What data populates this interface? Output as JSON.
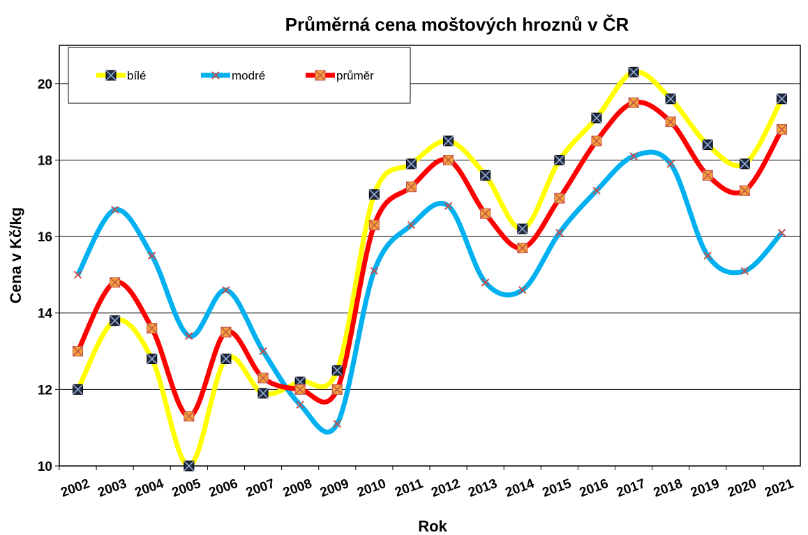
{
  "chart_data": {
    "type": "line",
    "title": "Průměrná cena moštových hroznů v ČR",
    "x_label": "Rok",
    "y_label": "Cena v Kč/kg",
    "categories": [
      "2002",
      "2003",
      "2004",
      "2005",
      "2006",
      "2007",
      "2008",
      "2009",
      "2010",
      "2011",
      "2012",
      "2013",
      "2014",
      "2015",
      "2016",
      "2017",
      "2018",
      "2019",
      "2020",
      "2021"
    ],
    "series": [
      {
        "name": "bílé",
        "color": "#ffff00",
        "values": [
          12.0,
          13.8,
          12.8,
          10.0,
          12.8,
          11.9,
          12.2,
          12.5,
          17.1,
          17.9,
          18.5,
          17.6,
          16.2,
          18.0,
          19.1,
          20.3,
          19.6,
          18.4,
          17.9,
          19.6
        ]
      },
      {
        "name": "modré",
        "color": "#00b0f0",
        "values": [
          15.0,
          16.7,
          15.5,
          13.4,
          14.6,
          13.0,
          11.6,
          11.1,
          15.1,
          16.3,
          16.8,
          14.8,
          14.6,
          16.1,
          17.2,
          18.1,
          17.9,
          15.5,
          15.1,
          16.1
        ]
      },
      {
        "name": "průměr",
        "color": "#ff0000",
        "values": [
          13.0,
          14.8,
          13.6,
          11.3,
          13.5,
          12.3,
          12.0,
          12.0,
          16.3,
          17.3,
          18.0,
          16.6,
          15.7,
          17.0,
          18.5,
          19.5,
          19.0,
          17.6,
          17.2,
          18.8
        ]
      }
    ],
    "ylim": [
      10,
      21
    ],
    "yticks": [
      10,
      12,
      14,
      16,
      18,
      20
    ],
    "grid": true,
    "smooth": true,
    "legend": "top-left"
  }
}
